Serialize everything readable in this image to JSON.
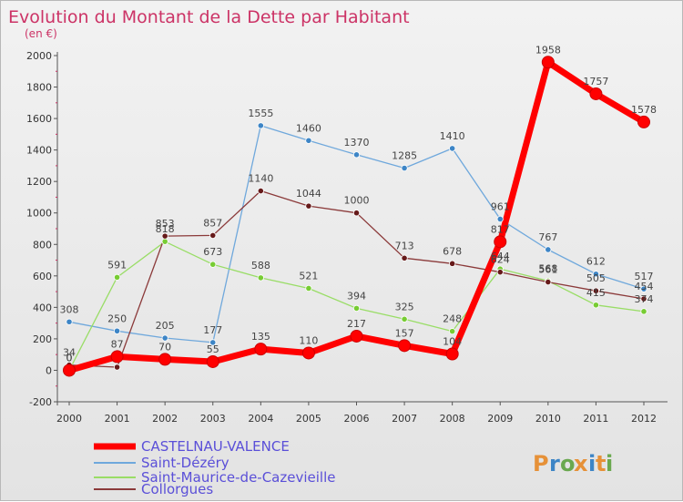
{
  "chart_data": {
    "type": "line",
    "title": "Evolution du Montant de la Dette par Habitant",
    "subtitle": "(en €)",
    "x": [
      "2000",
      "2001",
      "2002",
      "2003",
      "2004",
      "2005",
      "2006",
      "2007",
      "2008",
      "2009",
      "2010",
      "2011",
      "2012"
    ],
    "yticks": [
      "-200",
      "0",
      "200",
      "400",
      "600",
      "800",
      "1000",
      "1200",
      "1400",
      "1600",
      "1800",
      "2000"
    ],
    "ylim": [
      -200,
      2000
    ],
    "grid": false,
    "legend_position": "bottom-left",
    "series": [
      {
        "name": "CASTELNAU-VALENCE",
        "color": "#ff0000",
        "marker": "#ff0000",
        "values": [
          0,
          87,
          70,
          55,
          135,
          110,
          217,
          157,
          104,
          817,
          1958,
          1757,
          1578
        ],
        "labels": [
          "0",
          "87",
          "70",
          "55",
          "135",
          "110",
          "217",
          "157",
          "104",
          "817",
          "1958",
          "1757",
          "1578"
        ]
      },
      {
        "name": "Saint-Dézéry",
        "color": "#6fa8dc",
        "marker": "#3d85c6",
        "values": [
          308,
          250,
          205,
          177,
          1555,
          1460,
          1370,
          1285,
          1410,
          961,
          767,
          612,
          517
        ],
        "labels": [
          "308",
          "250",
          "205",
          "177",
          "1555",
          "1460",
          "1370",
          "1285",
          "1410",
          "961",
          "767",
          "612",
          "517"
        ]
      },
      {
        "name": "Saint-Maurice-de-Cazevieille",
        "color": "#99dd66",
        "marker": "#77cc33",
        "values": [
          0,
          591,
          818,
          673,
          588,
          521,
          394,
          325,
          248,
          644,
          568,
          415,
          374
        ],
        "labels": [
          "0",
          "591",
          "818",
          "673",
          "588",
          "521",
          "394",
          "325",
          "248",
          "644",
          "568",
          "415",
          "374"
        ]
      },
      {
        "name": "Collorgues",
        "color": "#8b3a3a",
        "marker": "#661a1a",
        "values": [
          34,
          20,
          853,
          857,
          1140,
          1044,
          1000,
          713,
          678,
          624,
          561,
          505,
          454
        ],
        "labels": [
          "34",
          "",
          "853",
          "857",
          "1140",
          "1044",
          "1000",
          "713",
          "678",
          "624",
          "561",
          "505",
          "454"
        ]
      }
    ]
  },
  "legend_color": "#5a4fd8",
  "title_color": "#cc3366",
  "logo": {
    "text": "Proxiti",
    "letters": [
      "P",
      "r",
      "o",
      "x",
      "i",
      "t",
      "i"
    ],
    "colors": [
      "#e69138",
      "#3d85c6",
      "#6aa84f",
      "#e69138",
      "#3d85c6",
      "#e69138",
      "#6aa84f"
    ]
  }
}
